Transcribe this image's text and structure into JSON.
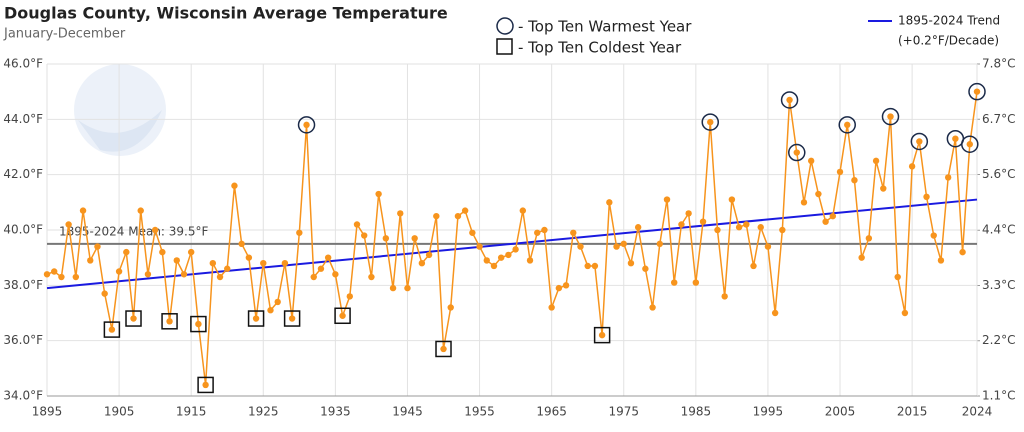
{
  "chart_data": {
    "type": "line",
    "title": "Douglas County, Wisconsin Average Temperature",
    "subtitle": "January-December",
    "x": [
      1895,
      1896,
      1897,
      1898,
      1899,
      1900,
      1901,
      1902,
      1903,
      1904,
      1905,
      1906,
      1907,
      1908,
      1909,
      1910,
      1911,
      1912,
      1913,
      1914,
      1915,
      1916,
      1917,
      1918,
      1919,
      1920,
      1921,
      1922,
      1923,
      1924,
      1925,
      1926,
      1927,
      1928,
      1929,
      1930,
      1931,
      1932,
      1933,
      1934,
      1935,
      1936,
      1937,
      1938,
      1939,
      1940,
      1941,
      1942,
      1943,
      1944,
      1945,
      1946,
      1947,
      1948,
      1949,
      1950,
      1951,
      1952,
      1953,
      1954,
      1955,
      1956,
      1957,
      1958,
      1959,
      1960,
      1961,
      1962,
      1963,
      1964,
      1965,
      1966,
      1967,
      1968,
      1969,
      1970,
      1971,
      1972,
      1973,
      1974,
      1975,
      1976,
      1977,
      1978,
      1979,
      1980,
      1981,
      1982,
      1983,
      1984,
      1985,
      1986,
      1987,
      1988,
      1989,
      1990,
      1991,
      1992,
      1993,
      1994,
      1995,
      1996,
      1997,
      1998,
      1999,
      2000,
      2001,
      2002,
      2003,
      2004,
      2005,
      2006,
      2007,
      2008,
      2009,
      2010,
      2011,
      2012,
      2013,
      2014,
      2015,
      2016,
      2017,
      2018,
      2019,
      2020,
      2021,
      2022,
      2023,
      2024
    ],
    "series": [
      {
        "color": "#f7941d",
        "values": [
          38.4,
          38.5,
          38.3,
          40.2,
          38.3,
          40.7,
          38.9,
          39.4,
          37.7,
          36.4,
          38.5,
          39.2,
          36.8,
          40.7,
          38.4,
          40.0,
          39.2,
          36.7,
          38.9,
          38.4,
          39.2,
          36.6,
          34.4,
          38.8,
          38.3,
          38.6,
          41.6,
          39.5,
          39.0,
          36.8,
          38.8,
          37.1,
          37.4,
          38.8,
          36.8,
          39.9,
          43.8,
          38.3,
          38.6,
          39.0,
          38.4,
          36.9,
          37.6,
          40.2,
          39.8,
          38.3,
          41.3,
          39.7,
          37.9,
          40.6,
          37.9,
          39.7,
          38.8,
          39.1,
          40.5,
          35.7,
          37.2,
          40.5,
          40.7,
          39.9,
          39.4,
          38.9,
          38.7,
          39.0,
          39.1,
          39.3,
          40.7,
          38.9,
          39.9,
          40.0,
          37.2,
          37.9,
          38.0,
          39.9,
          39.4,
          38.7,
          38.7,
          36.2,
          41.0,
          39.4,
          39.5,
          38.8,
          40.1,
          38.6,
          37.2,
          39.5,
          41.1,
          38.1,
          40.2,
          40.6,
          38.1,
          40.3,
          43.9,
          40.0,
          37.6,
          41.1,
          40.1,
          40.2,
          38.7,
          40.1,
          39.4,
          37.0,
          40.0,
          44.7,
          42.8,
          41.0,
          42.5,
          41.3,
          40.3,
          40.5,
          42.1,
          43.8,
          41.8,
          39.0,
          39.7,
          42.5,
          41.5,
          44.1,
          38.3,
          37.0,
          42.3,
          43.2,
          41.2,
          39.8,
          38.9,
          41.9,
          43.3,
          39.2,
          43.1,
          45.0
        ]
      }
    ],
    "warmest": {
      "label": "- Top Ten Warmest Year",
      "color": "#1b2a48",
      "years": [
        1931,
        1987,
        1998,
        1999,
        2006,
        2012,
        2016,
        2021,
        2023,
        2024
      ]
    },
    "coldest": {
      "label": "- Top Ten Coldest Year",
      "color": "#111111",
      "years": [
        1904,
        1907,
        1912,
        1916,
        1917,
        1924,
        1929,
        1936,
        1950,
        1972
      ]
    },
    "mean": {
      "label": "1895-2024 Mean: 39.5°F",
      "value": 39.5,
      "color": "#777777"
    },
    "trend": {
      "name": "1895-2024 Trend",
      "note": "(+0.2°F/Decade)",
      "color": "#1a1ae0",
      "values": [
        37.9,
        41.1
      ]
    },
    "xlim": [
      1895,
      2024
    ],
    "xticks": [
      1895,
      1905,
      1915,
      1925,
      1935,
      1945,
      1955,
      1965,
      1975,
      1985,
      1995,
      2005,
      2015,
      2024
    ],
    "ylim": [
      34,
      46
    ],
    "yticks": [
      {
        "value": 34,
        "label": "34.0°F"
      },
      {
        "value": 36,
        "label": "36.0°F"
      },
      {
        "value": 38,
        "label": "38.0°F"
      },
      {
        "value": 40,
        "label": "40.0°F"
      },
      {
        "value": 42,
        "label": "42.0°F"
      },
      {
        "value": 44,
        "label": "44.0°F"
      },
      {
        "value": 46,
        "label": "46.0°F"
      }
    ],
    "y2lim": [
      1.11,
      7.78
    ],
    "y2ticks": [
      {
        "value": 1.11,
        "label": "1.1°C"
      },
      {
        "value": 2.22,
        "label": "2.2°C"
      },
      {
        "value": 3.33,
        "label": "3.3°C"
      },
      {
        "value": 4.44,
        "label": "4.4°C"
      },
      {
        "value": 5.56,
        "label": "5.6°C"
      },
      {
        "value": 6.67,
        "label": "6.7°C"
      },
      {
        "value": 7.78,
        "label": "7.8°C"
      }
    ],
    "grid": true
  }
}
